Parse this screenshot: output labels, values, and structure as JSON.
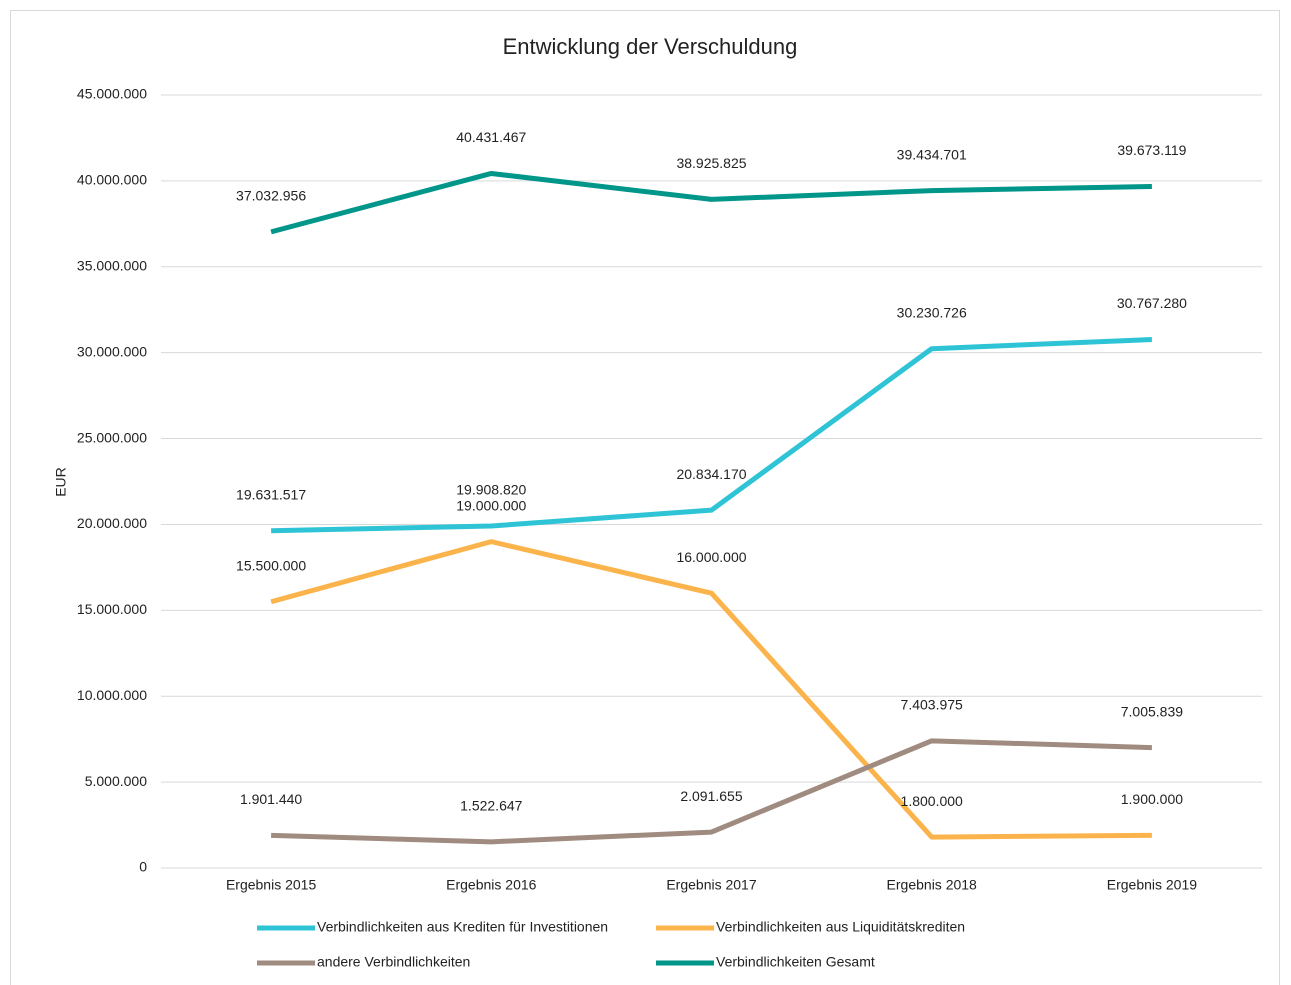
{
  "chart_data": {
    "type": "line",
    "title": "Entwicklung der Verschuldung",
    "y_label": "EUR",
    "categories": [
      "Ergebnis 2015",
      "Ergebnis 2016",
      "Ergebnis 2017",
      "Ergebnis 2018",
      "Ergebnis 2019"
    ],
    "series": [
      {
        "name": "Verbindlichkeiten aus Krediten für Investitionen",
        "color": "#2ec4d6",
        "values": [
          19631517,
          19908820,
          20834170,
          30230726,
          30767280
        ],
        "value_labels": [
          "19.631.517",
          "19.908.820",
          "20.834.170",
          "30.230.726",
          "30.767.280"
        ]
      },
      {
        "name": "Verbindlichkeiten aus Liquiditätskrediten",
        "color": "#fbb44c",
        "values": [
          15500000,
          19000000,
          16000000,
          1800000,
          1900000
        ],
        "value_labels": [
          "15.500.000",
          "19.000.000",
          "16.000.000",
          "1.800.000",
          "1.900.000"
        ]
      },
      {
        "name": "andere Verbindlichkeiten",
        "color": "#a08b80",
        "values": [
          1901440,
          1522647,
          2091655,
          7403975,
          7005839
        ],
        "value_labels": [
          "1.901.440",
          "1.522.647",
          "2.091.655",
          "7.403.975",
          "7.005.839"
        ]
      },
      {
        "name": "Verbindlichkeiten Gesamt",
        "color": "#00968a",
        "values": [
          37032956,
          40431467,
          38925825,
          39434701,
          39673119
        ],
        "value_labels": [
          "37.032.956",
          "40.431.467",
          "38.925.825",
          "39.434.701",
          "39.673.119"
        ]
      }
    ],
    "ylim": [
      0,
      45000000
    ],
    "yticks": [
      0,
      {
        "value": 5000000,
        "label": "5.000.000"
      },
      {
        "value": 10000000,
        "label": "10.000.000"
      },
      {
        "value": 15000000,
        "label": "15.000.000"
      },
      {
        "value": 20000000,
        "label": "20.000.000"
      },
      {
        "value": 25000000,
        "label": "25.000.000"
      },
      {
        "value": 30000000,
        "label": "30.000.000"
      },
      {
        "value": 35000000,
        "label": "35.000.000"
      },
      {
        "value": 40000000,
        "label": "40.000.000"
      },
      {
        "value": 45000000,
        "label": "45.000.000"
      }
    ],
    "grid": true,
    "legend": "bottom"
  }
}
